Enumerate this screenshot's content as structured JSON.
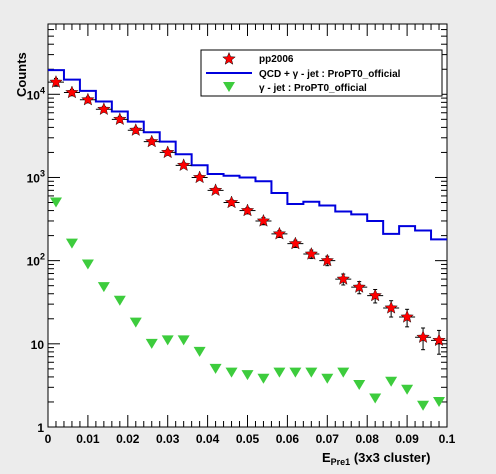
{
  "chart_data": {
    "type": "scatter",
    "title": "",
    "xlabel": {
      "main": "E",
      "subscript": "Pre1",
      "suffix": " (3x3 cluster)"
    },
    "ylabel": "Counts",
    "xlim": [
      0,
      0.1
    ],
    "ylim": [
      1,
      70000
    ],
    "yscale": "log",
    "grid": false,
    "legend_position": "top-right",
    "x_ticks": [
      0,
      0.01,
      0.02,
      0.03,
      0.04,
      0.05,
      0.06,
      0.07,
      0.08,
      0.09,
      0.1
    ],
    "x_tick_labels": [
      "0",
      "0.01",
      "0.02",
      "0.03",
      "0.04",
      "0.05",
      "0.06",
      "0.07",
      "0.08",
      "0.09",
      "0.1"
    ],
    "y_ticks": [
      1,
      10,
      100,
      1000,
      10000
    ],
    "y_tick_labels": [
      {
        "base": "1",
        "exp": ""
      },
      {
        "base": "10",
        "exp": ""
      },
      {
        "base": "10",
        "exp": "2"
      },
      {
        "base": "10",
        "exp": "3"
      },
      {
        "base": "10",
        "exp": "4"
      }
    ],
    "series": [
      {
        "name": "pp2006",
        "style": "stars-with-errorbars",
        "color": "#ff0000",
        "x": [
          0.002,
          0.006,
          0.01,
          0.014,
          0.018,
          0.022,
          0.026,
          0.03,
          0.034,
          0.038,
          0.042,
          0.046,
          0.05,
          0.054,
          0.058,
          0.062,
          0.066,
          0.07,
          0.074,
          0.078,
          0.082,
          0.086,
          0.09,
          0.094,
          0.098
        ],
        "y": [
          14000,
          10500,
          8600,
          6600,
          5000,
          3700,
          2700,
          2000,
          1400,
          1000,
          700,
          500,
          400,
          300,
          210,
          160,
          120,
          100,
          60,
          48,
          38,
          27,
          21,
          12,
          11
        ],
        "y_low": [
          12500,
          9600,
          7900,
          6100,
          4600,
          3400,
          2500,
          1850,
          1300,
          930,
          650,
          460,
          365,
          270,
          190,
          144,
          106,
          87,
          51,
          40,
          31,
          21,
          16,
          8.5,
          7.5
        ],
        "y_high": [
          15500,
          11400,
          9300,
          7100,
          5400,
          4000,
          2900,
          2150,
          1500,
          1070,
          750,
          540,
          435,
          330,
          230,
          176,
          134,
          113,
          69,
          56,
          45,
          33,
          26,
          15.5,
          14.5
        ]
      },
      {
        "name": "QCD + γ - jet : ProPT0_official",
        "style": "step",
        "color": "#0000dd",
        "bin_edges": [
          0,
          0.004,
          0.008,
          0.012,
          0.016,
          0.02,
          0.024,
          0.028,
          0.032,
          0.036,
          0.04,
          0.044,
          0.048,
          0.052,
          0.056,
          0.06,
          0.064,
          0.068,
          0.072,
          0.076,
          0.08,
          0.084,
          0.088,
          0.092,
          0.096,
          0.1
        ],
        "values": [
          19500,
          15000,
          11000,
          8200,
          6200,
          4700,
          3500,
          2700,
          1900,
          1400,
          1100,
          1050,
          1000,
          900,
          650,
          480,
          510,
          460,
          390,
          360,
          300,
          210,
          260,
          230,
          180
        ]
      },
      {
        "name": "γ - jet : ProPT0_official",
        "style": "triangles-down",
        "color": "#3dcc3d",
        "x": [
          0.002,
          0.006,
          0.01,
          0.014,
          0.018,
          0.022,
          0.026,
          0.03,
          0.034,
          0.038,
          0.042,
          0.046,
          0.05,
          0.054,
          0.058,
          0.062,
          0.066,
          0.07,
          0.074,
          0.078,
          0.082,
          0.086,
          0.09,
          0.094,
          0.098
        ],
        "y": [
          500,
          160,
          90,
          48,
          33,
          18,
          10,
          11,
          11,
          8,
          5,
          4.5,
          4.2,
          3.8,
          4.5,
          4.5,
          4.5,
          3.8,
          4.5,
          3.2,
          2.2,
          3.5,
          2.8,
          1.8,
          2
        ]
      }
    ]
  }
}
